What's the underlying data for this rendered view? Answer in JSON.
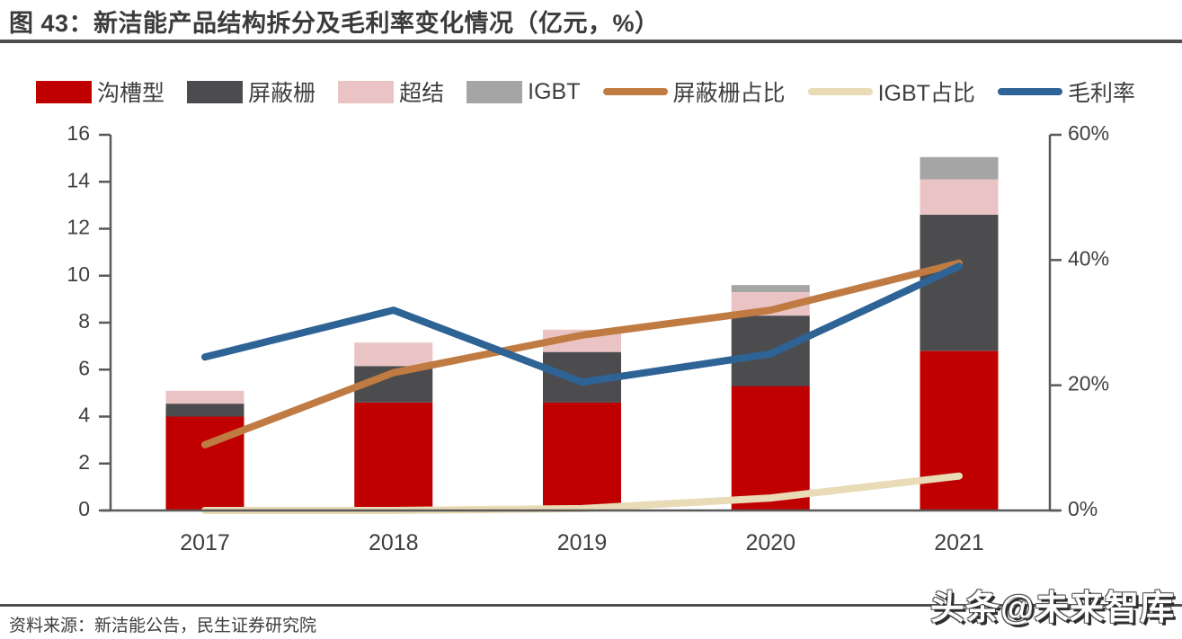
{
  "header": {
    "title": "图 43：新洁能产品结构拆分及毛利率变化情况（亿元，%）"
  },
  "source": {
    "label": "资料来源：新洁能公告，民生证券研究院"
  },
  "watermark": {
    "text": "头条@未来智库"
  },
  "colors": {
    "title_text": "#3b3b3b",
    "rule": "#4d4d4d",
    "axis": "#595959",
    "tick_label": "#404040"
  },
  "chart_data": {
    "type": "bar",
    "subtype": "stacked-bar-with-lines",
    "categories": [
      "2017",
      "2018",
      "2019",
      "2020",
      "2021"
    ],
    "bar_series": [
      {
        "name": "沟槽型",
        "color": "#c00000",
        "values": [
          4.0,
          4.6,
          4.6,
          5.3,
          6.8
        ]
      },
      {
        "name": "屏蔽栅",
        "color": "#4c4c4f",
        "values": [
          0.55,
          1.55,
          2.15,
          3.0,
          5.8
        ]
      },
      {
        "name": "超结",
        "color": "#eac4c5",
        "values": [
          0.55,
          1.0,
          0.95,
          1.0,
          1.5
        ]
      },
      {
        "name": "IGBT",
        "color": "#a5a5a5",
        "values": [
          0,
          0,
          0,
          0.3,
          0.95
        ]
      }
    ],
    "line_series": [
      {
        "name": "屏蔽栅占比",
        "color": "#c07b43",
        "values": [
          10.5,
          22,
          28,
          32,
          39.5
        ]
      },
      {
        "name": "IGBT占比",
        "color": "#e8dbb6",
        "values": [
          0,
          0,
          0.3,
          2,
          5.5
        ]
      },
      {
        "name": "毛利率",
        "color": "#2e6395",
        "values": [
          24.5,
          32,
          20.5,
          25,
          39
        ]
      }
    ],
    "left_axis": {
      "min": 0,
      "max": 16,
      "step": 2,
      "labels": [
        "0",
        "2",
        "4",
        "6",
        "8",
        "10",
        "12",
        "14",
        "16"
      ]
    },
    "right_axis": {
      "min": 0,
      "max": 60,
      "step": 20,
      "labels": [
        "0%",
        "20%",
        "40%",
        "60%"
      ]
    },
    "legend_position": "top",
    "grid": false
  }
}
